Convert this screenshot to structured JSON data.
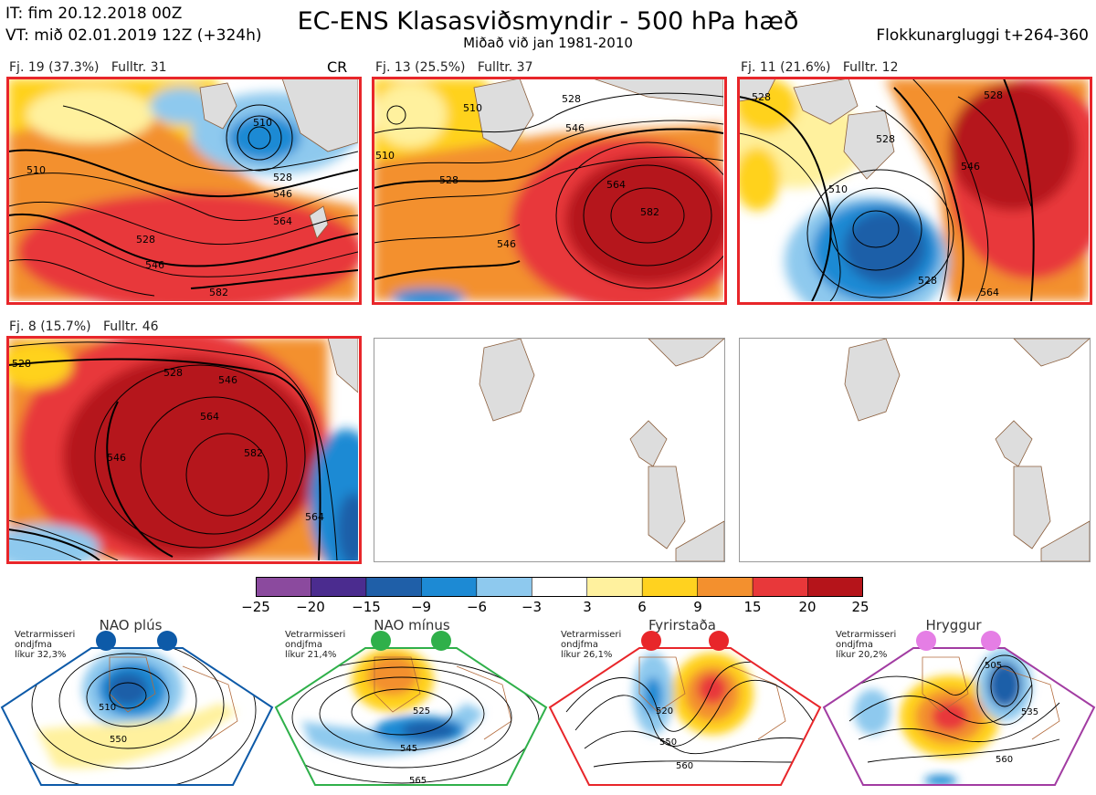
{
  "header": {
    "it": "IT: fim 20.12.2018 00Z",
    "vt": "VT: mið 02.01.2019 12Z  (+324h)",
    "title": "EC-ENS Klasasviðsmyndir - 500 hPa hæð",
    "subtitle": "Miðað við jan 1981-2010",
    "window": "Flokkunargluggi t+264-360"
  },
  "panels": [
    {
      "label": "Fj. 19 (37.3%)",
      "members": "Fulltr. 31",
      "tag": "CR",
      "contours": [
        "510",
        "528",
        "546",
        "564",
        "582"
      ]
    },
    {
      "label": "Fj. 13 (25.5%)",
      "members": "Fulltr. 37",
      "contours": [
        "510",
        "528",
        "546",
        "564",
        "582"
      ]
    },
    {
      "label": "Fj. 11 (21.6%)",
      "members": "Fulltr. 12",
      "contours": [
        "510",
        "528",
        "546",
        "564"
      ]
    },
    {
      "label": "Fj. 8 (15.7%)",
      "members": "Fulltr. 46",
      "contours": [
        "528",
        "546",
        "564",
        "582"
      ]
    }
  ],
  "colorbar": {
    "ticks": [
      "−25",
      "−20",
      "−15",
      "−9",
      "−6",
      "−3",
      "3",
      "6",
      "9",
      "15",
      "20",
      "25"
    ],
    "colors": [
      "#8b4a9e",
      "#4b2c8f",
      "#1f5fa8",
      "#1d8ad4",
      "#8ec9ee",
      "#ffffff",
      "#fff19e",
      "#ffd21f",
      "#f3902e",
      "#e8383a",
      "#b5141a"
    ]
  },
  "regimes": [
    {
      "title": "NAO plús",
      "note": [
        "Vetrarmisseri",
        "ondjfma",
        "líkur 32,3%"
      ],
      "color": "#0d5aa8",
      "contours": [
        "510",
        "550"
      ]
    },
    {
      "title": "NAO mínus",
      "note": [
        "Vetrarmisseri",
        "ondjfma",
        "líkur 21,4%"
      ],
      "color": "#2fb04a",
      "contours": [
        "525",
        "545",
        "565"
      ]
    },
    {
      "title": "Fyrirstaða",
      "note": [
        "Vetrarmisseri",
        "ondjfma",
        "líkur 26,1%"
      ],
      "color": "#e8262a",
      "contours": [
        "520",
        "550",
        "560"
      ]
    },
    {
      "title": "Hryggur",
      "note": [
        "Vetrarmisseri",
        "ondjfma",
        "líkur 20,2%"
      ],
      "color": "#e57ee5",
      "contours": [
        "505",
        "535",
        "560"
      ]
    }
  ]
}
